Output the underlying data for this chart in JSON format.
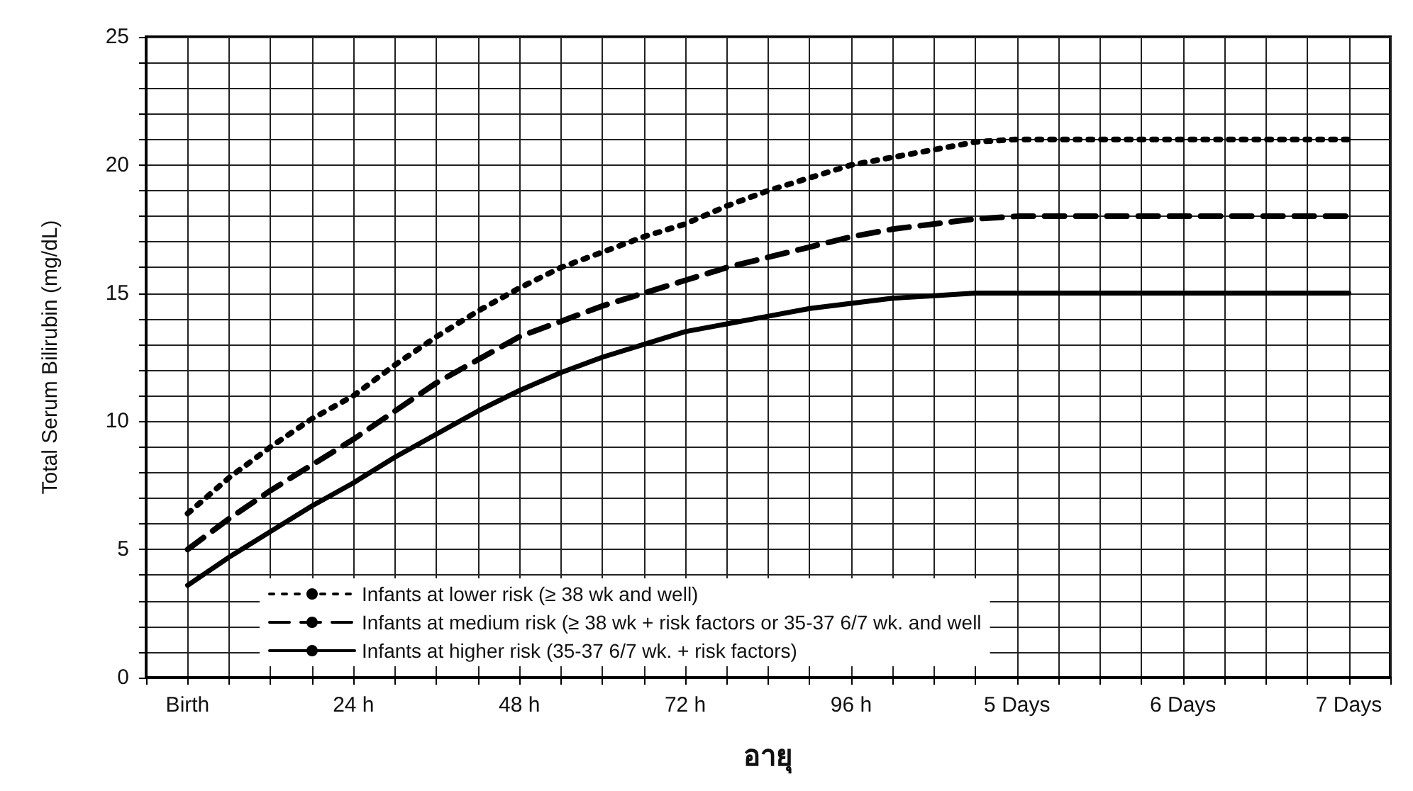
{
  "chart_data": {
    "type": "line",
    "xlabel": "อายุ",
    "ylabel": "Total Serum Bilirubin (mg/dL)",
    "categories": [
      null,
      "Birth",
      null,
      null,
      null,
      "24 h",
      null,
      null,
      null,
      "48 h",
      null,
      null,
      null,
      "72 h",
      null,
      null,
      null,
      "96 h",
      null,
      null,
      null,
      "5 Days",
      null,
      null,
      null,
      "6 Days",
      null,
      null,
      null,
      "7 Days",
      null
    ],
    "series": [
      {
        "name": "Infants at lower risk (≥ 38 wk and well)",
        "color": "#000000",
        "line_style": "dotted",
        "values": [
          null,
          6.4,
          7.8,
          9.0,
          10.1,
          11.0,
          12.2,
          13.3,
          14.3,
          15.2,
          16.0,
          16.6,
          17.2,
          17.7,
          18.4,
          19.0,
          19.5,
          20.0,
          20.3,
          20.6,
          20.9,
          21.0,
          21.0,
          21.0,
          21.0,
          21.0,
          21.0,
          21.0,
          21.0,
          21.0,
          null
        ]
      },
      {
        "name": "Infants at medium risk (≥ 38 wk + risk factors or 35-37 6/7 wk. and well",
        "color": "#000000",
        "line_style": "dashed",
        "values": [
          null,
          5.0,
          6.2,
          7.3,
          8.3,
          9.3,
          10.4,
          11.5,
          12.4,
          13.3,
          13.9,
          14.5,
          15.0,
          15.5,
          16.0,
          16.4,
          16.8,
          17.2,
          17.5,
          17.7,
          17.9,
          18.0,
          18.0,
          18.0,
          18.0,
          18.0,
          18.0,
          18.0,
          18.0,
          18.0,
          null
        ]
      },
      {
        "name": "Infants at higher risk (35-37 6/7 wk. + risk factors)",
        "color": "#000000",
        "line_style": "solid",
        "values": [
          null,
          3.6,
          4.7,
          5.7,
          6.7,
          7.6,
          8.6,
          9.5,
          10.4,
          11.2,
          11.9,
          12.5,
          13.0,
          13.5,
          13.8,
          14.1,
          14.4,
          14.6,
          14.8,
          14.9,
          15.0,
          15.0,
          15.0,
          15.0,
          15.0,
          15.0,
          15.0,
          15.0,
          15.0,
          15.0,
          null
        ]
      }
    ],
    "ylim": [
      0,
      25
    ],
    "yticks": [
      0,
      {
        "value": 1,
        "label": null
      },
      {
        "value": 2,
        "label": null
      },
      {
        "value": 3,
        "label": null
      },
      {
        "value": 4,
        "label": null
      },
      5,
      {
        "value": 6,
        "label": null
      },
      {
        "value": 7,
        "label": null
      },
      {
        "value": 8,
        "label": null
      },
      {
        "value": 9,
        "label": null
      },
      10,
      {
        "value": 11,
        "label": null
      },
      {
        "value": 12,
        "label": null
      },
      {
        "value": 13,
        "label": null
      },
      {
        "value": 14,
        "label": null
      },
      15,
      {
        "value": 16,
        "label": null
      },
      {
        "value": 17,
        "label": null
      },
      {
        "value": 18,
        "label": null
      },
      {
        "value": 19,
        "label": null
      },
      20,
      {
        "value": 21,
        "label": null
      },
      {
        "value": 22,
        "label": null
      },
      {
        "value": 23,
        "label": null
      },
      {
        "value": 24,
        "label": null
      },
      25
    ],
    "grid": true,
    "legend": "bottom left",
    "marker": "none"
  }
}
